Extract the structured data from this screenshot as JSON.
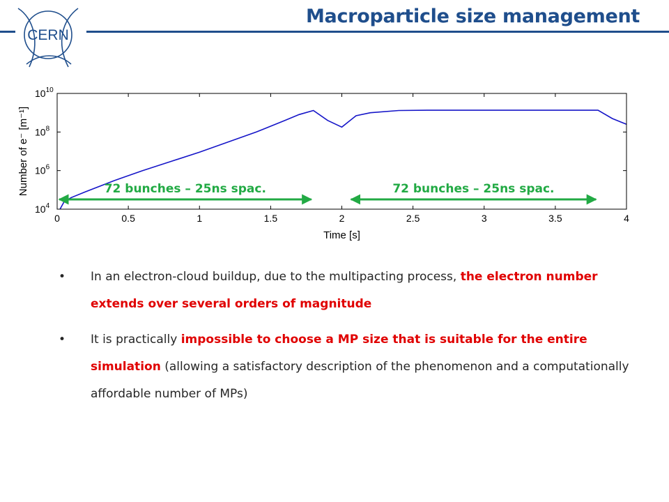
{
  "header": {
    "title": "Macroparticle size management",
    "logo_text": "CERN"
  },
  "colors": {
    "accent": "#1f4e8c",
    "series": "#1515c8",
    "arrow": "#22aa44",
    "highlight": "#e00000"
  },
  "chart_data": {
    "type": "line",
    "xlabel": "Time [s]",
    "ylabel": "Number of e⁻ [m⁻¹]",
    "y_scale": "log",
    "xlim": [
      0,
      4
    ],
    "ylim": [
      10000,
      10000000000
    ],
    "x_ticks": [
      "0",
      "0.5",
      "1",
      "1.5",
      "2",
      "2.5",
      "3",
      "3.5",
      "4"
    ],
    "y_ticks": [
      {
        "base": "10",
        "exp": "4"
      },
      {
        "base": "10",
        "exp": "6"
      },
      {
        "base": "10",
        "exp": "8"
      },
      {
        "base": "10",
        "exp": "10"
      }
    ],
    "series": [
      {
        "x": [
          0.02,
          0.05,
          0.1,
          0.2,
          0.4,
          0.6,
          0.8,
          1.0,
          1.2,
          1.4,
          1.6,
          1.7,
          1.8,
          1.9,
          2.0,
          2.1,
          2.2,
          2.4,
          2.6,
          3.0,
          3.4,
          3.8,
          3.9,
          4.0
        ],
        "y": [
          10000,
          25000,
          40000,
          80000,
          300000,
          1000000,
          3000000,
          9000000,
          30000000,
          100000000,
          400000000,
          800000000,
          1300000000,
          400000000,
          180000000,
          700000000,
          1000000000,
          1300000000,
          1350000000,
          1350000000,
          1350000000,
          1350000000,
          500000000,
          250000000
        ]
      }
    ],
    "annotations": [
      {
        "text": "72 bunches – 25ns spac.",
        "x_start": 0.0,
        "x_end": 1.8
      },
      {
        "text": "72 bunches – 25ns spac.",
        "x_start": 2.05,
        "x_end": 3.8
      }
    ]
  },
  "bullets": [
    {
      "parts": [
        {
          "text": "In an electron-cloud buildup, due to the multipacting process, ",
          "hl": false
        },
        {
          "text": "the electron number extends over several orders of magnitude",
          "hl": true
        }
      ]
    },
    {
      "parts": [
        {
          "text": "It is practically ",
          "hl": false
        },
        {
          "text": "impossible to choose a MP size that is suitable for the entire simulation",
          "hl": true
        },
        {
          "text": " (allowing a satisfactory description of the phenomenon and a computationally affordable number of MPs)",
          "hl": false
        }
      ]
    }
  ]
}
